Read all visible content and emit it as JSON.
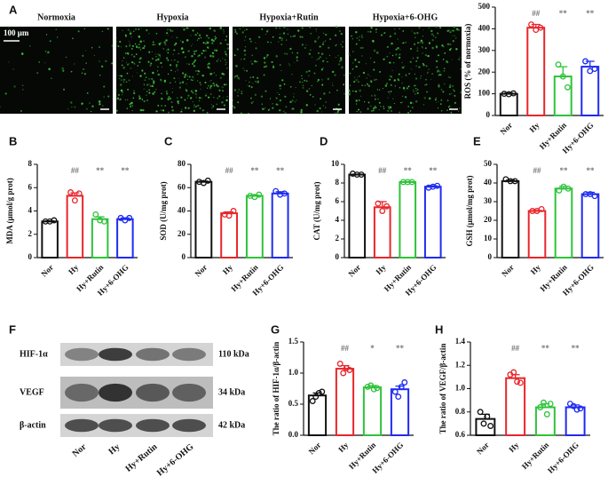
{
  "micrographs": {
    "panel": "A",
    "labels": [
      "Normoxia",
      "Hypoxia",
      "Hypoxia+Rutin",
      "Hypoxia+6-OHG"
    ],
    "scale": "100 μm"
  },
  "blot": {
    "panel": "F",
    "rows": [
      "HIF-1α",
      "VEGF",
      "β-actin"
    ],
    "sizes": [
      "110 kDa",
      "34 kDa",
      "42 kDa"
    ],
    "lanes": [
      "Nor",
      "Hy",
      "Hy+Rutin",
      "Hy+6-OHG"
    ]
  },
  "chart_data": [
    {
      "type": "bar",
      "ylabel": "ROS (% of normoxia)",
      "categories": [
        "Nor",
        "Hy",
        "Hy+Rutin",
        "Hy+6-OHG"
      ],
      "colors": [
        "#111111",
        "#e8262b",
        "#2fc33a",
        "#1f2bf0"
      ],
      "values": [
        100,
        405,
        180,
        225
      ],
      "errors": [
        3,
        15,
        45,
        25
      ],
      "points": [
        [
          100,
          98,
          102
        ],
        [
          420,
          395,
          405
        ],
        [
          235,
          180,
          130
        ],
        [
          250,
          205,
          215
        ]
      ],
      "annotations": [
        null,
        "##",
        "**",
        "**"
      ],
      "ylim": [
        0,
        500
      ],
      "yticks": [
        0,
        100,
        200,
        300,
        400,
        500
      ]
    },
    {
      "type": "bar",
      "panel": "B",
      "ylabel": "MDA (μmol/g prot)",
      "categories": [
        "Nor",
        "Hy",
        "Hy+Rutin",
        "Hy+6-OHG"
      ],
      "colors": [
        "#111111",
        "#e8262b",
        "#2fc33a",
        "#1f2bf0"
      ],
      "values": [
        3.1,
        5.3,
        3.3,
        3.3
      ],
      "errors": [
        0.05,
        0.25,
        0.2,
        0.1
      ],
      "points": [
        [
          3.1,
          3.1,
          3.2
        ],
        [
          5.6,
          4.9,
          5.5
        ],
        [
          3.7,
          3.2,
          3.1
        ],
        [
          3.4,
          3.2,
          3.4
        ]
      ],
      "annotations": [
        null,
        "##",
        "**",
        "**"
      ],
      "ylim": [
        0,
        8
      ],
      "yticks": [
        0,
        2,
        4,
        6,
        8
      ]
    },
    {
      "type": "bar",
      "panel": "C",
      "ylabel": "SOD (U/mg prot)",
      "categories": [
        "Nor",
        "Hy",
        "Hy+Rutin",
        "Hy+6-OHG"
      ],
      "colors": [
        "#111111",
        "#e8262b",
        "#2fc33a",
        "#1f2bf0"
      ],
      "values": [
        65,
        38,
        53,
        55
      ],
      "errors": [
        0.6,
        1.2,
        0.6,
        1.5
      ],
      "points": [
        [
          65,
          64,
          66
        ],
        [
          37,
          36,
          40
        ],
        [
          53,
          52,
          54
        ],
        [
          57,
          54,
          55
        ]
      ],
      "annotations": [
        null,
        "##",
        "**",
        "**"
      ],
      "ylim": [
        0,
        80
      ],
      "yticks": [
        0,
        20,
        40,
        60,
        80
      ]
    },
    {
      "type": "bar",
      "panel": "D",
      "ylabel": "CAT (U/mg prot)",
      "categories": [
        "Nor",
        "Hy",
        "Hy+Rutin",
        "Hy+6-OHG"
      ],
      "colors": [
        "#111111",
        "#e8262b",
        "#2fc33a",
        "#1f2bf0"
      ],
      "values": [
        8.9,
        5.4,
        8.1,
        7.6
      ],
      "errors": [
        0.05,
        0.6,
        0.05,
        0.1
      ],
      "points": [
        [
          9.0,
          8.9,
          8.9
        ],
        [
          5.8,
          5.0,
          5.5
        ],
        [
          8.1,
          8.1,
          8.1
        ],
        [
          7.5,
          7.6,
          7.7
        ]
      ],
      "annotations": [
        null,
        "##",
        "**",
        "**"
      ],
      "ylim": [
        0,
        10
      ],
      "yticks": [
        0,
        2,
        4,
        6,
        8,
        10
      ]
    },
    {
      "type": "bar",
      "panel": "E",
      "ylabel": "GSH (μmol/mg prot)",
      "categories": [
        "Nor",
        "Hy",
        "Hy+Rutin",
        "Hy+6-OHG"
      ],
      "colors": [
        "#111111",
        "#e8262b",
        "#2fc33a",
        "#1f2bf0"
      ],
      "values": [
        41,
        25,
        37,
        34
      ],
      "errors": [
        0.5,
        0.3,
        1.2,
        1.0
      ],
      "points": [
        [
          42,
          41,
          41
        ],
        [
          25,
          25,
          26
        ],
        [
          36,
          38,
          37
        ],
        [
          34,
          34,
          33
        ]
      ],
      "annotations": [
        null,
        "##",
        "**",
        "**"
      ],
      "ylim": [
        0,
        50
      ],
      "yticks": [
        0,
        10,
        20,
        30,
        40,
        50
      ]
    },
    {
      "type": "bar",
      "panel": "G",
      "ylabel": "The ratio of HIF-1α/β-actin",
      "categories": [
        "Nor",
        "Hy",
        "Hy+Rutin",
        "Hy+6-OHG"
      ],
      "colors": [
        "#111111",
        "#e8262b",
        "#2fc33a",
        "#1f2bf0"
      ],
      "values": [
        0.64,
        1.07,
        0.77,
        0.74
      ],
      "errors": [
        0.04,
        0.05,
        0.03,
        0.05
      ],
      "points": [
        [
          0.55,
          0.62,
          0.68,
          0.7
        ],
        [
          1.15,
          1.0,
          1.08,
          1.05
        ],
        [
          0.78,
          0.8,
          0.74,
          0.76
        ],
        [
          0.7,
          0.62,
          0.78,
          0.85
        ]
      ],
      "annotations": [
        null,
        "##",
        "*",
        "**"
      ],
      "ylim": [
        0,
        1.5
      ],
      "yticks": [
        {
          "value": 0,
          "label": "0.0"
        },
        0.5,
        {
          "value": 1,
          "label": "1.0"
        },
        1.5
      ]
    },
    {
      "type": "bar",
      "panel": "H",
      "ylabel": "The ratio of VEGF/β-actin",
      "categories": [
        "Nor",
        "Hy",
        "Hy+Rutin",
        "Hy+6-OHG"
      ],
      "colors": [
        "#111111",
        "#e8262b",
        "#2fc33a",
        "#1f2bf0"
      ],
      "values": [
        0.74,
        1.09,
        0.84,
        0.84
      ],
      "errors": [
        0.04,
        0.03,
        0.03,
        0.02
      ],
      "points": [
        [
          0.8,
          0.7,
          0.76,
          0.68
        ],
        [
          1.12,
          1.14,
          1.06,
          1.05
        ],
        [
          0.84,
          0.88,
          0.78,
          0.87
        ],
        [
          0.87,
          0.85,
          0.82,
          0.83
        ]
      ],
      "annotations": [
        null,
        "##",
        "**",
        "**"
      ],
      "ylim": [
        0.6,
        1.4
      ],
      "yticks": [
        0.6,
        0.8,
        {
          "value": 1,
          "label": "1.0"
        },
        1.2,
        1.4
      ]
    }
  ]
}
